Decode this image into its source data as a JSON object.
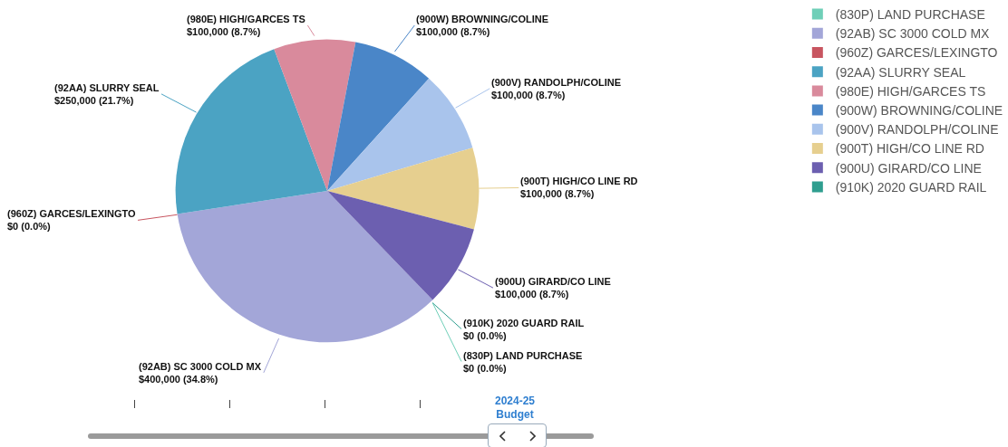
{
  "chart_data": {
    "type": "pie",
    "categories": [
      "(830P) LAND PURCHASE",
      "(92AB) SC 3000 COLD MX",
      "(960Z) GARCES/LEXINGTO",
      "(92AA) SLURRY SEAL",
      "(980E) HIGH/GARCES TS",
      "(900W) BROWNING/COLINE",
      "(900V) RANDOLPH/COLINE",
      "(900T) HIGH/CO LINE RD",
      "(900U) GIRARD/CO LINE",
      "(910K) 2020 GUARD RAIL"
    ],
    "values": [
      0,
      400000,
      0,
      250000,
      100000,
      100000,
      100000,
      100000,
      100000,
      0
    ],
    "value_labels": [
      "$0 (0.0%)",
      "$400,000 (34.8%)",
      "$0 (0.0%)",
      "$250,000 (21.7%)",
      "$100,000 (8.7%)",
      "$100,000 (8.7%)",
      "$100,000 (8.7%)",
      "$100,000 (8.7%)",
      "$100,000 (8.7%)",
      "$0 (0.0%)"
    ],
    "colors": [
      "#6fcfb8",
      "#a3a6d8",
      "#c85560",
      "#4ba3c3",
      "#d98a9c",
      "#4a86c8",
      "#a9c4ec",
      "#e6cf8f",
      "#6c5fb0",
      "#2f9e8f"
    ],
    "legend": "top right",
    "annotations": [
      "2024-25 Budget"
    ]
  }
}
